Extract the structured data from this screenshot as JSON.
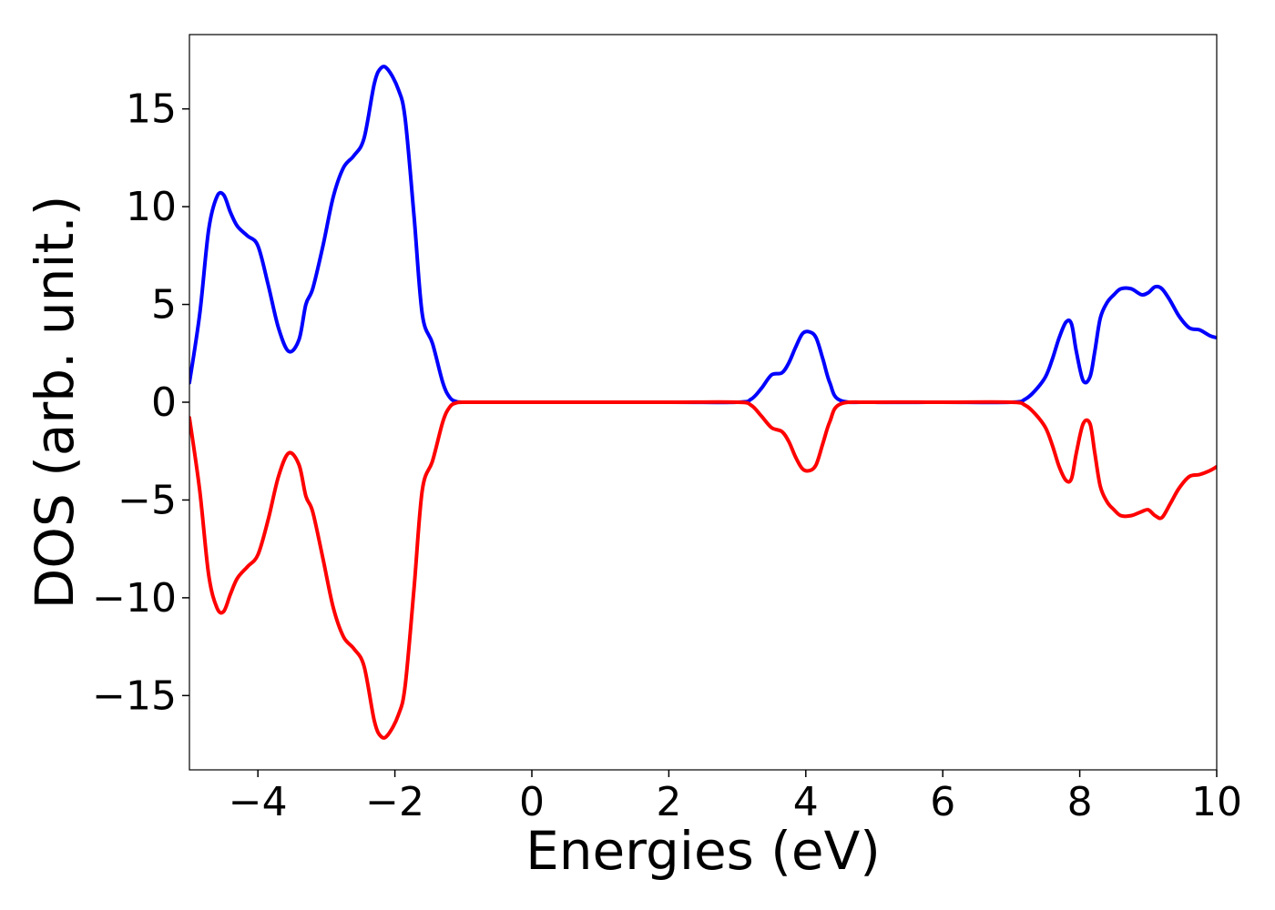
{
  "chart_data": {
    "type": "line",
    "title": "",
    "xlabel": "Energies (eV)",
    "ylabel": "DOS (arb. unit.)",
    "xlim": [
      -5,
      10
    ],
    "ylim": [
      -18.8,
      18.8
    ],
    "grid": false,
    "legend": "none",
    "x_ticks": [
      -4,
      -2,
      0,
      2,
      4,
      6,
      8,
      10
    ],
    "x_tick_labels": [
      "−4",
      "−2",
      "0",
      "2",
      "4",
      "6",
      "8",
      "10"
    ],
    "y_ticks": [
      -15,
      -10,
      -5,
      0,
      5,
      10,
      15
    ],
    "y_tick_labels": [
      "−15",
      "−10",
      "−5",
      "0",
      "5",
      "10",
      "15"
    ],
    "series": [
      {
        "color": "#0000ff",
        "x": [
          -5.0,
          -4.85,
          -4.72,
          -4.6,
          -4.5,
          -4.4,
          -4.3,
          -4.15,
          -4.0,
          -3.85,
          -3.7,
          -3.55,
          -3.4,
          -3.3,
          -3.2,
          -3.05,
          -2.9,
          -2.75,
          -2.6,
          -2.45,
          -2.3,
          -2.2,
          -2.1,
          -1.95,
          -1.85,
          -1.72,
          -1.6,
          -1.45,
          -1.3,
          -1.2,
          -1.1,
          -0.95,
          -0.8,
          -0.65,
          -0.5,
          0.0,
          2.0,
          3.0,
          3.2,
          3.35,
          3.5,
          3.65,
          3.75,
          3.85,
          3.95,
          4.05,
          4.15,
          4.25,
          4.35,
          4.5,
          5.0,
          6.0,
          7.0,
          7.2,
          7.35,
          7.5,
          7.6,
          7.7,
          7.8,
          7.88,
          7.95,
          8.05,
          8.15,
          8.22,
          8.3,
          8.4,
          8.5,
          8.6,
          8.75,
          8.9,
          9.0,
          9.1,
          9.2,
          9.32,
          9.45,
          9.6,
          9.75,
          9.9,
          10.0
        ],
        "y": [
          1.0,
          4.5,
          8.8,
          10.5,
          10.6,
          9.7,
          9.0,
          8.5,
          8.0,
          6.0,
          3.8,
          2.6,
          3.2,
          5.0,
          5.8,
          8.0,
          10.5,
          12.0,
          12.6,
          13.5,
          16.3,
          17.1,
          17.0,
          16.0,
          14.5,
          9.5,
          4.5,
          3.0,
          1.0,
          0.25,
          0.03,
          0.0,
          0.0,
          0.0,
          0.0,
          0.0,
          0.0,
          0.0,
          0.15,
          0.7,
          1.4,
          1.5,
          2.0,
          2.8,
          3.5,
          3.6,
          3.3,
          2.2,
          1.0,
          0.1,
          0.0,
          0.0,
          0.0,
          0.15,
          0.6,
          1.3,
          2.2,
          3.3,
          4.1,
          4.0,
          2.6,
          1.1,
          1.3,
          2.6,
          4.3,
          5.1,
          5.5,
          5.8,
          5.8,
          5.5,
          5.6,
          5.9,
          5.8,
          5.2,
          4.4,
          3.8,
          3.7,
          3.4,
          3.3
        ]
      },
      {
        "color": "#ff0000",
        "x": [
          -5.0,
          -4.85,
          -4.72,
          -4.6,
          -4.5,
          -4.4,
          -4.3,
          -4.15,
          -4.0,
          -3.85,
          -3.7,
          -3.55,
          -3.4,
          -3.3,
          -3.2,
          -3.05,
          -2.9,
          -2.75,
          -2.6,
          -2.45,
          -2.3,
          -2.2,
          -2.1,
          -1.95,
          -1.85,
          -1.72,
          -1.6,
          -1.45,
          -1.3,
          -1.2,
          -1.1,
          -0.95,
          -0.8,
          -0.65,
          -0.5,
          0.0,
          2.0,
          3.0,
          3.2,
          3.35,
          3.5,
          3.65,
          3.75,
          3.85,
          3.95,
          4.05,
          4.15,
          4.25,
          4.35,
          4.5,
          5.0,
          6.0,
          7.0,
          7.2,
          7.35,
          7.5,
          7.6,
          7.7,
          7.8,
          7.88,
          7.95,
          8.05,
          8.15,
          8.22,
          8.3,
          8.4,
          8.5,
          8.6,
          8.75,
          8.9,
          9.0,
          9.1,
          9.2,
          9.32,
          9.45,
          9.6,
          9.75,
          9.9,
          10.0
        ],
        "y": [
          -0.8,
          -4.5,
          -8.8,
          -10.5,
          -10.7,
          -9.8,
          -9.0,
          -8.4,
          -7.8,
          -6.0,
          -3.8,
          -2.6,
          -3.2,
          -4.8,
          -5.6,
          -8.0,
          -10.5,
          -12.0,
          -12.6,
          -13.5,
          -16.3,
          -17.1,
          -17.0,
          -16.0,
          -14.5,
          -9.5,
          -4.5,
          -3.0,
          -1.0,
          -0.25,
          -0.03,
          0.0,
          0.0,
          0.0,
          0.0,
          0.0,
          0.0,
          0.0,
          -0.15,
          -0.7,
          -1.3,
          -1.5,
          -2.0,
          -2.8,
          -3.4,
          -3.5,
          -3.2,
          -2.1,
          -1.0,
          -0.1,
          0.0,
          0.0,
          0.0,
          -0.15,
          -0.6,
          -1.3,
          -2.2,
          -3.3,
          -4.0,
          -3.9,
          -2.6,
          -1.1,
          -1.1,
          -2.6,
          -4.3,
          -5.1,
          -5.5,
          -5.8,
          -5.8,
          -5.6,
          -5.5,
          -5.8,
          -5.9,
          -5.2,
          -4.4,
          -3.8,
          -3.7,
          -3.5,
          -3.3
        ]
      }
    ]
  }
}
